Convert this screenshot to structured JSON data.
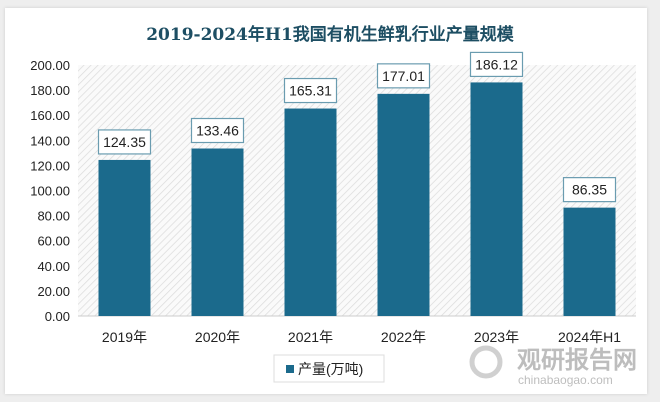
{
  "chart_data": {
    "type": "bar",
    "title": "2019-2024年H1我国有机生鲜乳行业产量规模",
    "categories": [
      "2019年",
      "2020年",
      "2021年",
      "2022年",
      "2023年",
      "2024年H1"
    ],
    "series": [
      {
        "name": "产量(万吨)",
        "values": [
          124.35,
          133.46,
          165.31,
          177.01,
          186.12,
          86.35
        ]
      }
    ],
    "data_labels": [
      "124.35",
      "133.46",
      "165.31",
      "177.01",
      "186.12",
      "86.35"
    ],
    "ylim": [
      0,
      200
    ],
    "yticks": [
      "0.00",
      "20.00",
      "40.00",
      "60.00",
      "80.00",
      "100.00",
      "120.00",
      "140.00",
      "160.00",
      "180.00",
      "200.00"
    ],
    "legend_position": "bottom",
    "grid": false,
    "colors": {
      "bar": "#1b6a8c",
      "title": "#1d4e63"
    }
  },
  "watermark": {
    "name": "观研报告网",
    "url": "chinabaogao.com"
  }
}
